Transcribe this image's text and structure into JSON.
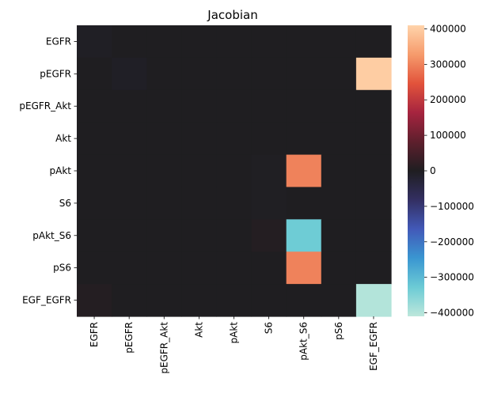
{
  "chart_data": {
    "type": "heatmap",
    "title": "Jacobian",
    "xlabel": "",
    "ylabel": "",
    "rows": [
      "EGFR",
      "pEGFR",
      "pEGFR_Akt",
      "Akt",
      "pAkt",
      "S6",
      "pAkt_S6",
      "pS6",
      "EGF_EGFR"
    ],
    "cols": [
      "EGFR",
      "pEGFR",
      "pEGFR_Akt",
      "Akt",
      "pAkt",
      "S6",
      "pAkt_S6",
      "pS6",
      "EGF_EGFR"
    ],
    "values": [
      [
        -5000,
        0,
        0,
        0,
        0,
        0,
        0,
        0,
        0
      ],
      [
        0,
        -6000,
        0,
        0,
        0,
        0,
        0,
        0,
        400000
      ],
      [
        0,
        0,
        0,
        0,
        0,
        0,
        0,
        0,
        0
      ],
      [
        0,
        0,
        0,
        0,
        0,
        0,
        0,
        0,
        0
      ],
      [
        0,
        0,
        0,
        0,
        0,
        -3000,
        300000,
        0,
        0
      ],
      [
        0,
        0,
        0,
        0,
        0,
        -3000,
        0,
        0,
        0
      ],
      [
        0,
        0,
        0,
        0,
        0,
        7000,
        -330000,
        0,
        0
      ],
      [
        0,
        0,
        0,
        0,
        0,
        0,
        300000,
        0,
        0
      ],
      [
        7000,
        0,
        0,
        0,
        0,
        0,
        0,
        0,
        -400000
      ]
    ],
    "colorbar": {
      "min": -410000,
      "max": 410000,
      "ticks": [
        400000,
        300000,
        200000,
        100000,
        0,
        -100000,
        -200000,
        -300000,
        -400000
      ],
      "tick_labels": [
        "400000",
        "300000",
        "200000",
        "100000",
        "0",
        "−100000",
        "−200000",
        "−300000",
        "−400000"
      ]
    },
    "colormap": "icefire",
    "legend": "colorbar-right",
    "grid": false
  }
}
